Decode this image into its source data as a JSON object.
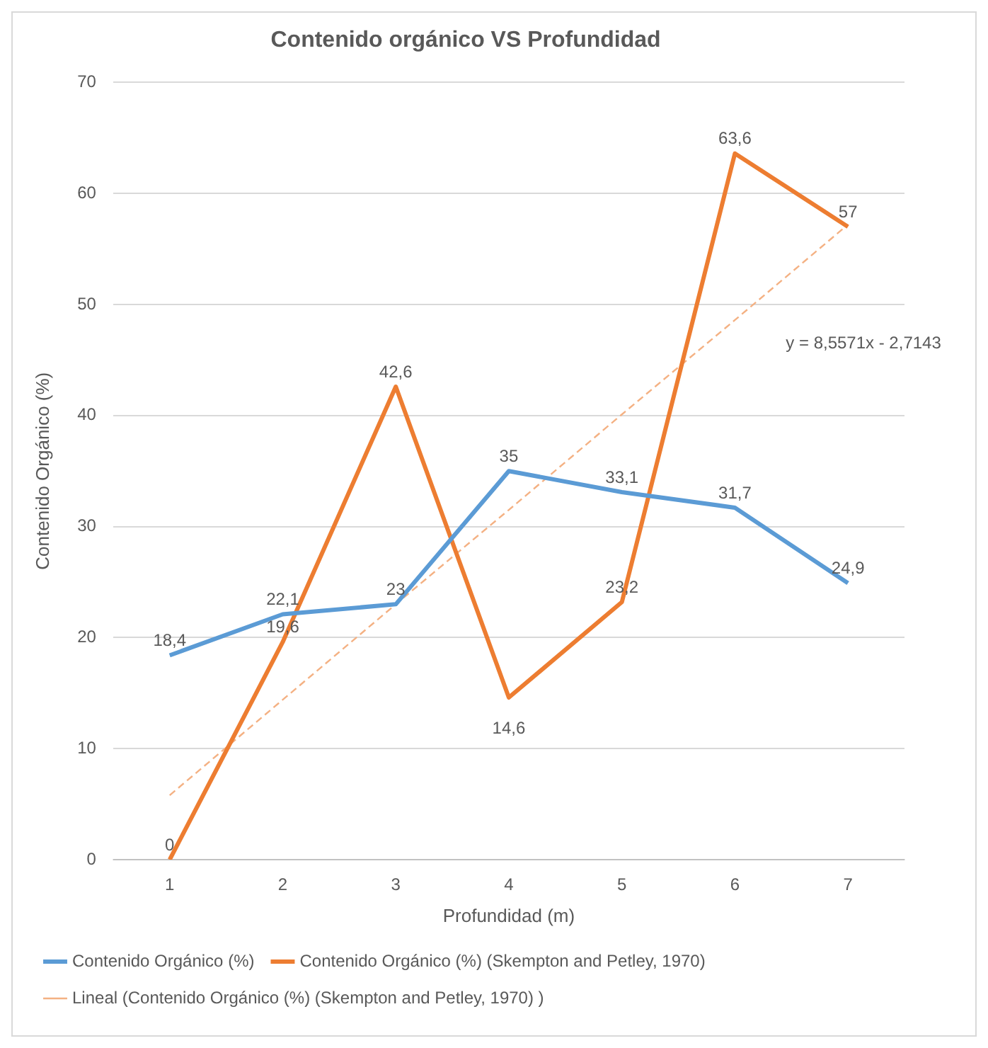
{
  "chart_data": {
    "type": "line",
    "title": "Contenido orgánico VS Profundidad",
    "xlabel": "Profundidad (m)",
    "ylabel": "Contenido Orgánico (%)",
    "categories": [
      "1",
      "2",
      "3",
      "4",
      "5",
      "6",
      "7"
    ],
    "series": [
      {
        "name": "Contenido Orgánico (%)",
        "color": "#5b9bd5",
        "values": [
          18.4,
          22.1,
          23,
          35,
          33.1,
          31.7,
          24.9
        ],
        "value_labels": [
          "18,4",
          "22,1",
          "23",
          "35",
          "33,1",
          "31,7",
          "24,9"
        ]
      },
      {
        "name": "Contenido Orgánico (%) (Skempton and Petley, 1970)",
        "color": "#ed7d31",
        "values": [
          0,
          19.6,
          42.6,
          14.6,
          23.2,
          63.6,
          57
        ],
        "value_labels": [
          "0",
          "19,6",
          "42,6",
          "14,6",
          "23,2",
          "63,6",
          "57"
        ]
      },
      {
        "name": "Lineal (Contenido Orgánico (%) (Skempton and Petley, 1970) )",
        "color": "#f4b183",
        "line_style": "dashed",
        "values": [
          5.8,
          14.4,
          23,
          31.5,
          40.1,
          48.6,
          57.2
        ]
      }
    ],
    "annotations": [
      "y = 8,5571x - 2,7143"
    ],
    "ylim": [
      0,
      70
    ],
    "yticks": [
      0,
      10,
      20,
      30,
      40,
      50,
      60,
      70
    ],
    "grid": "y",
    "legend": "bottom",
    "marker": "none"
  }
}
